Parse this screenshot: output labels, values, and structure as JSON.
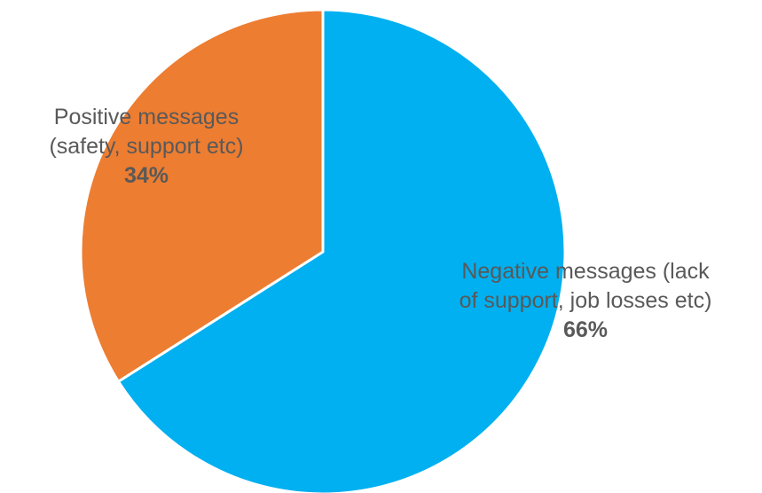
{
  "chart_data": {
    "type": "pie",
    "title": "",
    "start_angle_deg": 0,
    "direction": "clockwise",
    "slices": [
      {
        "label_line1": "Negative messages (lack",
        "label_line2": "of support, job losses etc)",
        "value": 66,
        "percent_label": "66%",
        "color": "#00B0F0"
      },
      {
        "label_line1": "Positive messages",
        "label_line2": "(safety, support etc)",
        "value": 34,
        "percent_label": "34%",
        "color": "#ED7D31"
      }
    ],
    "legend": "none"
  }
}
